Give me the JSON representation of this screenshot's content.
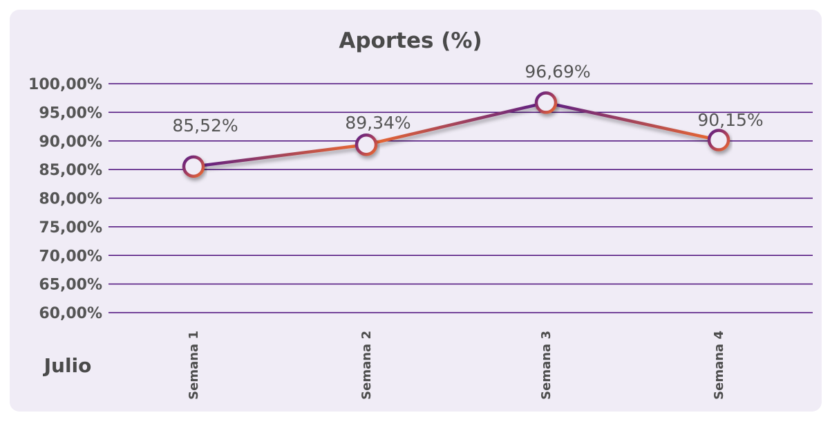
{
  "chart_data": {
    "type": "line",
    "title": "Aportes (%)",
    "group_label": "Julio",
    "categories": [
      "Semana 1",
      "Semana 2",
      "Semana 3",
      "Semana 4"
    ],
    "values": [
      85.52,
      89.34,
      96.69,
      90.15
    ],
    "data_labels": [
      "85,52%",
      "89,34%",
      "96,69%",
      "90,15%"
    ],
    "ylim": [
      60,
      100
    ],
    "y_ticks": [
      100,
      95,
      90,
      85,
      80,
      75,
      70,
      65,
      60
    ],
    "y_tick_labels": [
      "100,00%",
      "95,00%",
      "90,00%",
      "85,00%",
      "80,00%",
      "75,00%",
      "70,00%",
      "65,00%",
      "60,00%"
    ],
    "grid": true,
    "legend": "none",
    "colors": {
      "background": "#f0ecf6",
      "gridline": "#4b0c7a",
      "line_start": "#5b1e86",
      "line_end": "#ee6a2e",
      "text": "#555555"
    }
  }
}
